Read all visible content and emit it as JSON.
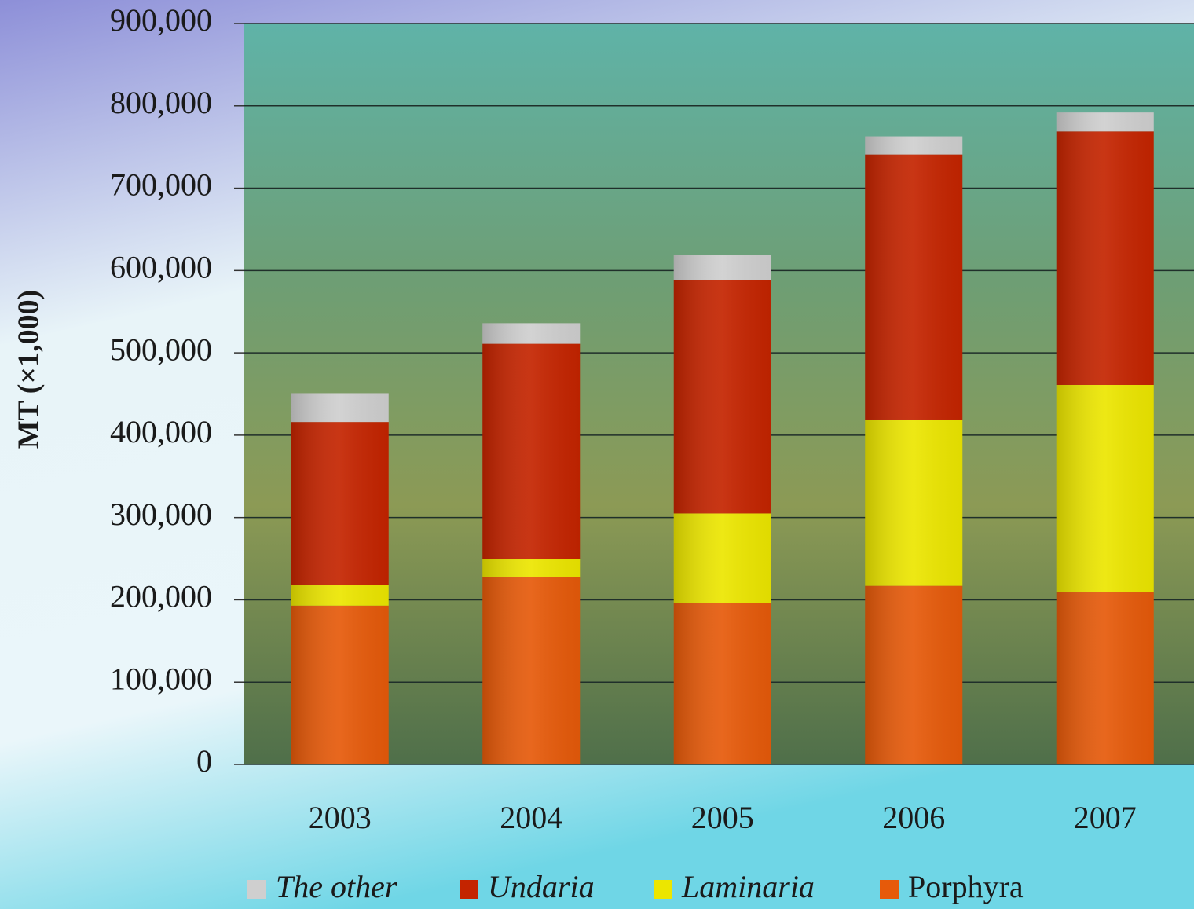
{
  "chart_data": {
    "type": "stacked_bar",
    "y_label": "MT (×1,000)",
    "categories": [
      "2003",
      "2004",
      "2005",
      "2006",
      "2007"
    ],
    "series": [
      {
        "name": "Porphyra",
        "color": "#e65a0a",
        "italic": false,
        "values": [
          193000,
          228000,
          196000,
          217000,
          209000
        ]
      },
      {
        "name": "Laminaria",
        "color": "#ece600",
        "italic": true,
        "values": [
          25000,
          22000,
          109000,
          202000,
          252000
        ]
      },
      {
        "name": "Undaria",
        "color": "#c42400",
        "italic": true,
        "values": [
          198000,
          261000,
          283000,
          322000,
          308000
        ]
      },
      {
        "name": "The other",
        "color": "#cfcfcf",
        "italic": true,
        "values": [
          35000,
          25000,
          31000,
          22000,
          23000
        ]
      }
    ],
    "ylim": [
      0,
      900000
    ],
    "yticks": [
      0,
      {
        "value": 100000,
        "label": "100,000"
      },
      {
        "value": 200000,
        "label": "200,000"
      },
      {
        "value": 300000,
        "label": "300,000"
      },
      {
        "value": 400000,
        "label": "400,000"
      },
      {
        "value": 500000,
        "label": "500,000"
      },
      {
        "value": 600000,
        "label": "600,000"
      },
      {
        "value": 700000,
        "label": "700,000"
      },
      {
        "value": 800000,
        "label": "800,000"
      },
      {
        "value": 900000,
        "label": "900,000"
      }
    ],
    "grid": true
  }
}
